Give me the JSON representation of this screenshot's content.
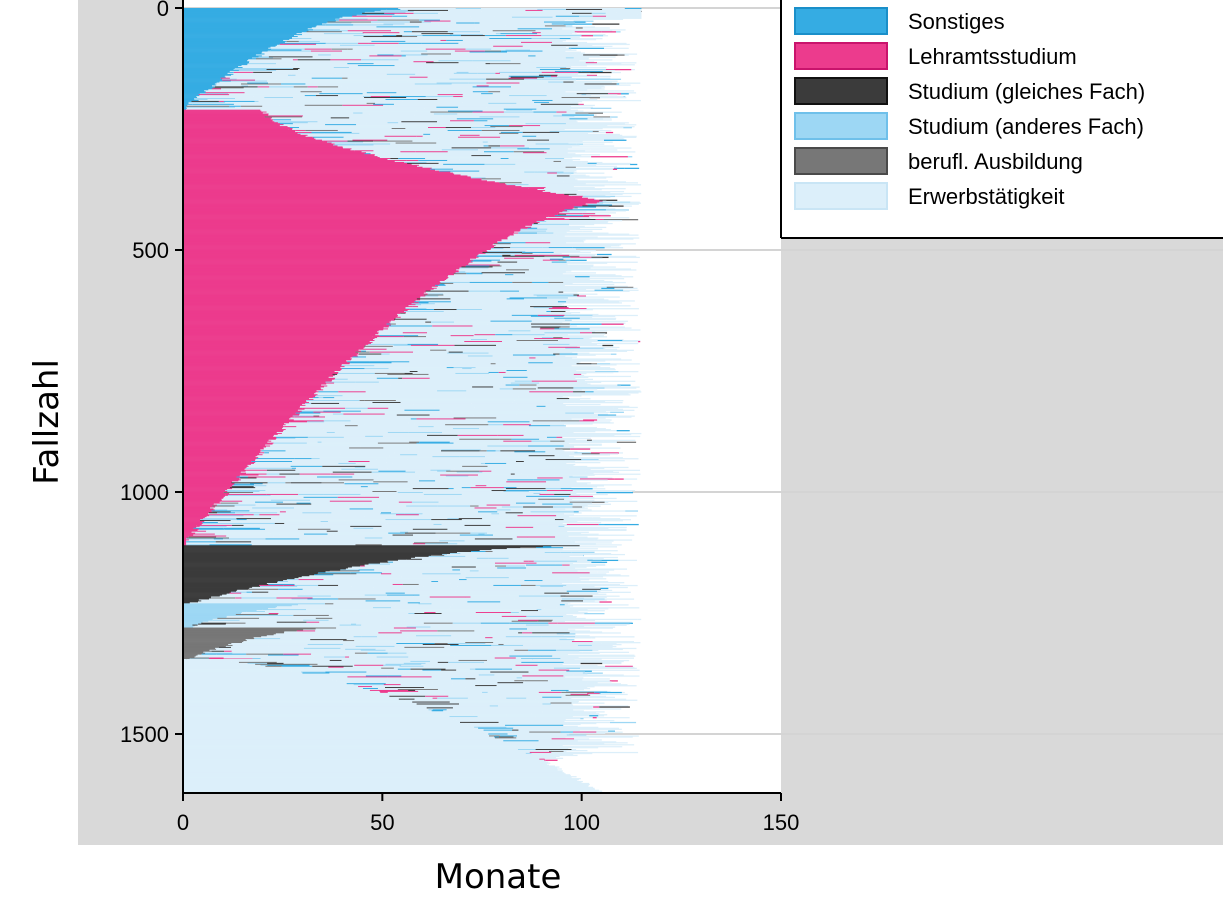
{
  "chart_data": {
    "type": "sequence-index-plot",
    "xlabel": "Monate",
    "ylabel": "Fallzahl",
    "xlim": [
      0,
      150
    ],
    "ylim": [
      0,
      1620
    ],
    "y_reversed": true,
    "x_ticks": [
      "0",
      "50",
      "100",
      "150"
    ],
    "y_ticks": [
      "0",
      "500",
      "1000",
      "1500"
    ],
    "legend_position": "top-right",
    "grid": "horizontal",
    "states": [
      {
        "name": "Sonstiges",
        "color": "#35ace3",
        "edge": "#1a8fc9"
      },
      {
        "name": "Lehramtsstudium",
        "color": "#ec3b8d",
        "edge": "#c9136c"
      },
      {
        "name": "Studium (gleiches Fach)",
        "color": "#3b3b3b",
        "edge": "#111111"
      },
      {
        "name": "Studium (anderes Fach)",
        "color": "#9dd7f4",
        "edge": "#6fc0ea"
      },
      {
        "name": "berufl. Ausbildung",
        "color": "#777777",
        "edge": "#4a4a4a"
      },
      {
        "name": "Erwerbstätigkeit",
        "color": "#dceffa",
        "edge": "#c9e5f5"
      }
    ],
    "groups": [
      {
        "first_state": "Sonstiges",
        "case_from": 0,
        "case_to": 210,
        "first_spell_months": [
          55,
          0
        ]
      },
      {
        "first_state": "Lehramtsstudium",
        "case_from": 210,
        "case_to": 1110,
        "first_spell_months": [
          20,
          106,
          0
        ]
      },
      {
        "first_state": "Studium (gleiches Fach)",
        "case_from": 1110,
        "case_to": 1230,
        "first_spell_months": [
          100,
          1
        ]
      },
      {
        "first_state": "Studium (anderes Fach)",
        "case_from": 1230,
        "case_to": 1280,
        "first_spell_months": [
          35,
          1
        ]
      },
      {
        "first_state": "berufl. Ausbildung",
        "case_from": 1280,
        "case_to": 1345,
        "first_spell_months": [
          38,
          1
        ]
      },
      {
        "first_state": "Erwerbstätigkeit",
        "case_from": 1345,
        "case_to": 1620,
        "first_spell_months": [
          1,
          105
        ]
      }
    ],
    "sequence_end_months": [
      95,
      115
    ]
  }
}
